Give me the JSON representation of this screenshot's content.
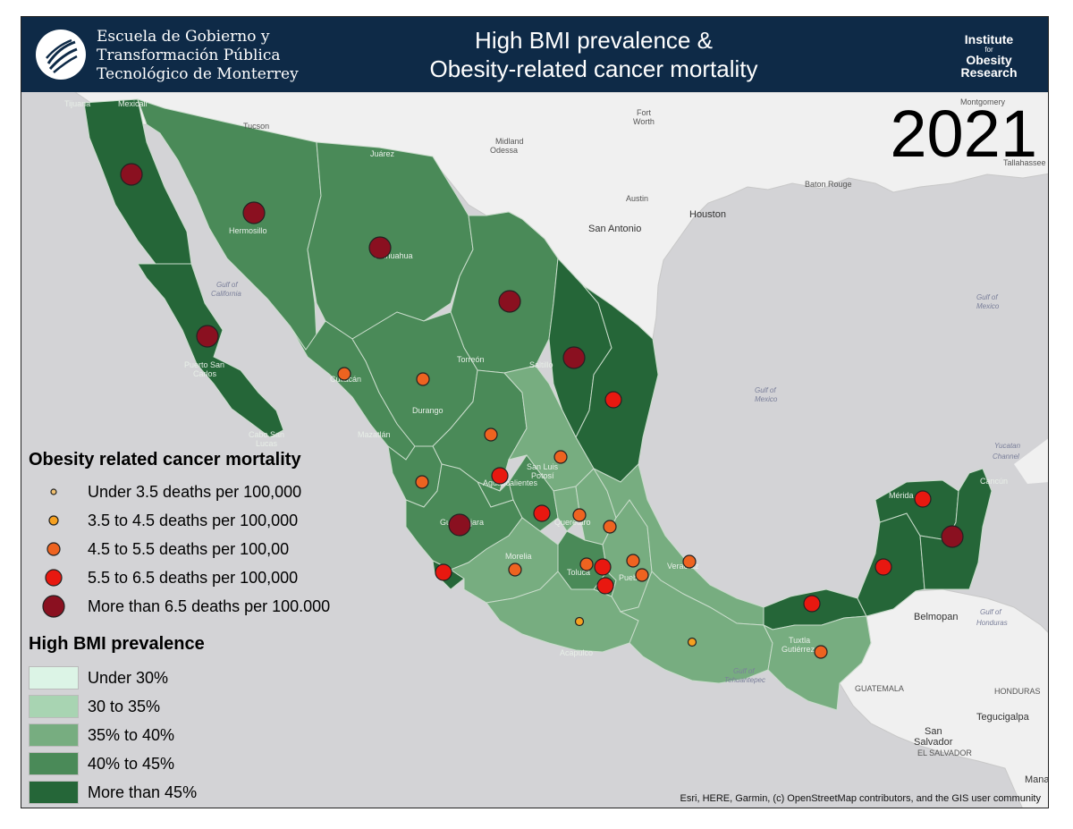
{
  "header": {
    "school_line1": "Escuela de Gobierno y",
    "school_line2": "Transformación Pública",
    "school_line3": "Tecnológico de Monterrey",
    "title_line1": "High BMI prevalence &",
    "title_line2": "Obesity-related cancer mortality",
    "institute_line1": "Institute",
    "institute_for": "for",
    "institute_line2": "Obesity",
    "institute_line3": "Research"
  },
  "year": "2021",
  "colors": {
    "bmi_under30": "#dcf4e6",
    "bmi_30_35": "#a8d4b2",
    "bmi_35_40": "#77ad80",
    "bmi_40_45": "#4a8a58",
    "bmi_over45": "#256638",
    "dot_under35": "#f0c070",
    "dot_35_45": "#f5a020",
    "dot_45_55": "#ee6320",
    "dot_55_65": "#e81810",
    "dot_over65": "#8a1020"
  },
  "legend_mortality": {
    "title": "Obesity related cancer mortality",
    "items": [
      {
        "label": "Under 3.5 deaths per 100,000",
        "cls": "under35"
      },
      {
        "label": "3.5 to 4.5 deaths per 100,000",
        "cls": "35_45"
      },
      {
        "label": "4.5 to 5.5 deaths per 100,00",
        "cls": "45_55"
      },
      {
        "label": "5.5 to 6.5 deaths per 100,000",
        "cls": "55_65"
      },
      {
        "label": "More than 6.5 deaths per 100.000",
        "cls": "over65"
      }
    ]
  },
  "legend_bmi": {
    "title": "High BMI prevalence",
    "items": [
      {
        "label": "Under 30%",
        "cls": "under30"
      },
      {
        "label": "30 to 35%",
        "cls": "30_35"
      },
      {
        "label": "35% to 40%",
        "cls": "35_40"
      },
      {
        "label": "40% to 45%",
        "cls": "40_45"
      },
      {
        "label": "More than 45%",
        "cls": "over45"
      }
    ]
  },
  "place_labels": {
    "tucson": "Tucson",
    "midland": "Midland",
    "odessa": "Odessa",
    "fort": "Fort",
    "worth": "Worth",
    "austin": "Austin",
    "houston": "Houston",
    "san_antonio": "San Antonio",
    "baton_rouge": "Baton Rouge",
    "montgomery": "Montgomery",
    "tallahassee": "Tallahassee",
    "tijuana": "Tijuana",
    "mexicali": "Mexicali",
    "juarez": "Juárez",
    "hermosillo": "Hermosillo",
    "chihuahua": "Chihuahua",
    "torreon": "Torreón",
    "saltillo": "Saltillo",
    "culiacan": "Culiacán",
    "durango": "Durango",
    "mazatlan": "Mazatlán",
    "san_luis_1": "San Luis",
    "san_luis_2": "Potosí",
    "aguascalientes": "Aguascalientes",
    "guadalajara": "Guadalajara",
    "queretaro": "Querétaro",
    "morelia": "Morelia",
    "toluca": "Toluca",
    "puebla": "Puebla",
    "veracruz": "Veracruz",
    "acapulco": "Acapulco",
    "tuxtla_1": "Tuxtla",
    "tuxtla_2": "Gutiérrez",
    "merida": "Mérida",
    "cancun": "Cancún",
    "puerto_san_1": "Puerto San",
    "puerto_san_2": "Carlos",
    "cabo_1": "Cabo San",
    "cabo_2": "Lucas",
    "belmopan": "Belmopan",
    "guatemala": "GUATEMALA",
    "honduras": "HONDURAS",
    "tegucigalpa": "Tegucigalpa",
    "san_salvador_1": "San",
    "san_salvador_2": "Salvador",
    "el_salvador": "EL SALVADOR",
    "managua": "Managu",
    "gulf_ca_1": "Gulf of",
    "gulf_ca_2": "California",
    "gulf_mx_1": "Gulf of",
    "gulf_mx_2": "Mexico",
    "gulf_mx2_1": "Gulf of",
    "gulf_mx2_2": "Mexico",
    "yucatan_1": "Yucatan",
    "yucatan_2": "Channel",
    "gulf_hon_1": "Gulf of",
    "gulf_hon_2": "Honduras",
    "gulf_teh_1": "Gulf of",
    "gulf_teh_2": "Tehuantepec",
    "tijuana_edge": "Tijuana"
  },
  "credits": "Esri, HERE, Garmin, (c) OpenStreetMap contributors, and the GIS user community"
}
